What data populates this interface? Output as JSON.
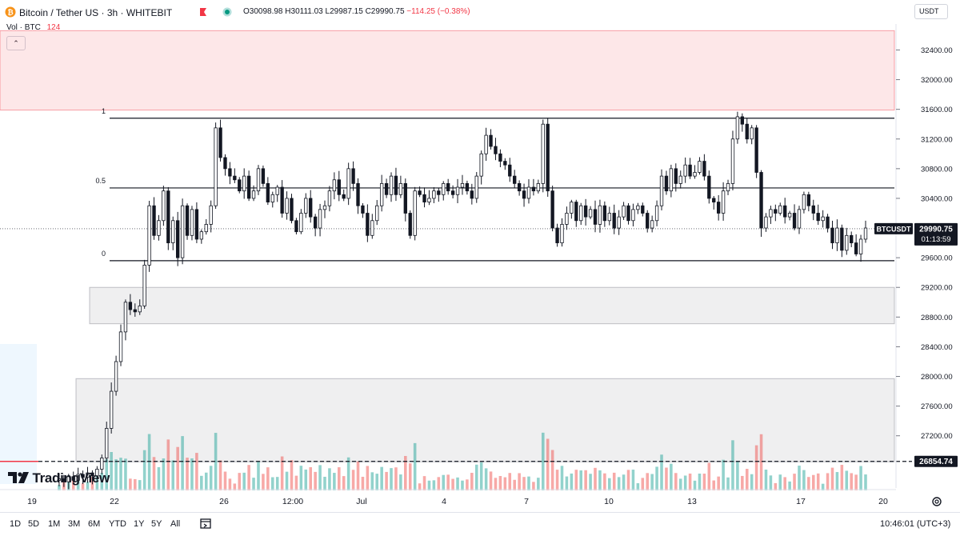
{
  "header": {
    "symbol_title": "Bitcoin / Tether US · 3h · WHITEBIT",
    "ohlc": {
      "o": "O30098.98",
      "h": "H30111.03",
      "l": "L29987.15",
      "c": "C29990.75",
      "change": "−114.25 (−0.38%)"
    },
    "currency": "USDT",
    "colors": {
      "up": "#26a69a",
      "down": "#ef5350",
      "accent": "#f7931a"
    }
  },
  "volume_legend": {
    "label": "Vol · BTC",
    "value": "124"
  },
  "logo": "TradingView",
  "chart_data": {
    "type": "candlestick",
    "y_ticks": [
      "32400.00",
      "32000.00",
      "31600.00",
      "31200.00",
      "30800.00",
      "30400.00",
      "30000.00",
      "29600.00",
      "29200.00",
      "28800.00",
      "28400.00",
      "28000.00",
      "27600.00",
      "27200.00"
    ],
    "ylim": [
      26550,
      32750
    ],
    "x_ticks": [
      "19",
      "22",
      "26",
      "12:00",
      "Jul",
      "4",
      "7",
      "10",
      "13",
      "17",
      "20"
    ],
    "fib_levels": [
      {
        "label": "1",
        "value": 31480
      },
      {
        "label": "0.5",
        "value": 30540
      },
      {
        "label": "0",
        "value": 29560
      }
    ],
    "zones": [
      {
        "from": 31590,
        "to": 32660,
        "color": "#f23645"
      },
      {
        "from": 28710,
        "to": 29200,
        "color": "#787b86"
      },
      {
        "from": 26850,
        "to": 27970,
        "color": "#787b86"
      }
    ],
    "last_price": {
      "symbol": "BTCUSDT",
      "price": "29990.75",
      "countdown": "01:13:59",
      "value": 29990.75
    },
    "marked_level": {
      "price": "26854.74",
      "value": 26854.74
    },
    "path": [
      26600,
      26620,
      26580,
      26650,
      26600,
      26680,
      26640,
      26700,
      26660,
      26750,
      26900,
      27300,
      27800,
      28200,
      28600,
      29000,
      28900,
      28870,
      28950,
      29500,
      30300,
      29900,
      30100,
      30500,
      29800,
      30100,
      29600,
      30300,
      29900,
      30250,
      29850,
      29950,
      30050,
      30300,
      31350,
      30950,
      30800,
      30700,
      30650,
      30500,
      30700,
      30400,
      30500,
      30800,
      30600,
      30350,
      30450,
      30550,
      30200,
      30400,
      30100,
      29950,
      30200,
      30400,
      30150,
      30000,
      30250,
      30300,
      30500,
      30650,
      30450,
      30400,
      30800,
      30600,
      30300,
      30200,
      29900,
      30100,
      30300,
      30600,
      30450,
      30700,
      30450,
      30600,
      30200,
      29900,
      30500,
      30450,
      30350,
      30400,
      30500,
      30450,
      30600,
      30500,
      30450,
      30550,
      30600,
      30500,
      30400,
      30700,
      31000,
      31250,
      31100,
      31000,
      30900,
      30850,
      30700,
      30600,
      30500,
      30400,
      30550,
      30500,
      30600,
      31400,
      30500,
      30000,
      29800,
      30050,
      30200,
      30350,
      30100,
      30300,
      30150,
      30250,
      30050,
      30300,
      30100,
      30200,
      30000,
      30150,
      30300,
      30100,
      30250,
      30300,
      30200,
      30000,
      30100,
      30300,
      30700,
      30500,
      30800,
      30600,
      30700,
      30850,
      30700,
      30750,
      30900,
      30700,
      30400,
      30350,
      30200,
      30500,
      30600,
      31200,
      31500,
      31400,
      31200,
      31350,
      30750,
      30000,
      30150,
      30250,
      30200,
      30300,
      30150,
      30200,
      30000,
      30250,
      30450,
      30300,
      30200,
      30100,
      30150,
      30000,
      29800,
      30000,
      29700,
      29900,
      29800,
      29650,
      29850,
      30000
    ]
  }
}
